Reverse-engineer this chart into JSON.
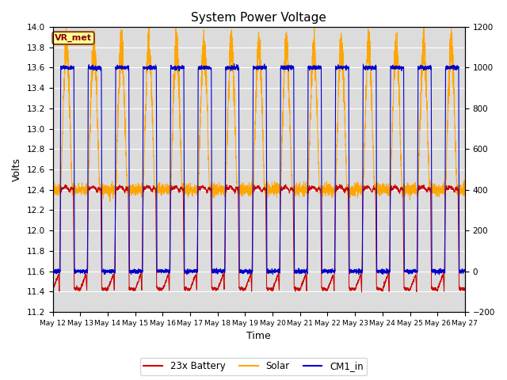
{
  "title": "System Power Voltage",
  "xlabel": "Time",
  "ylabel_left": "Volts",
  "ylim_left": [
    11.2,
    14.0
  ],
  "ylim_right": [
    -200,
    1200
  ],
  "bg_color": "#dcdcdc",
  "plot_bg_color": "#dcdcdc",
  "grid_color": "#c0c0c0",
  "battery_color": "#cc0000",
  "solar_color": "#ffa500",
  "cm1_color": "#0000cc",
  "legend_labels": [
    "23x Battery",
    "Solar",
    "CM1_in"
  ],
  "annotation_text": "VR_met",
  "annotation_bg": "#ffff99",
  "annotation_border": "#8b4513",
  "x_tick_labels": [
    "May 12",
    "May 13",
    "May 14",
    "May 15",
    "May 16",
    "May 17",
    "May 18",
    "May 19",
    "May 20",
    "May 21",
    "May 22",
    "May 23",
    "May 24",
    "May 25",
    "May 26",
    "May 27"
  ],
  "yticks_left": [
    11.2,
    11.4,
    11.6,
    11.8,
    12.0,
    12.2,
    12.4,
    12.6,
    12.8,
    13.0,
    13.2,
    13.4,
    13.6,
    13.8,
    14.0
  ],
  "yticks_right": [
    -200,
    0,
    200,
    400,
    600,
    800,
    1000,
    1200
  ],
  "n_days": 15,
  "hours_per_day": 24
}
